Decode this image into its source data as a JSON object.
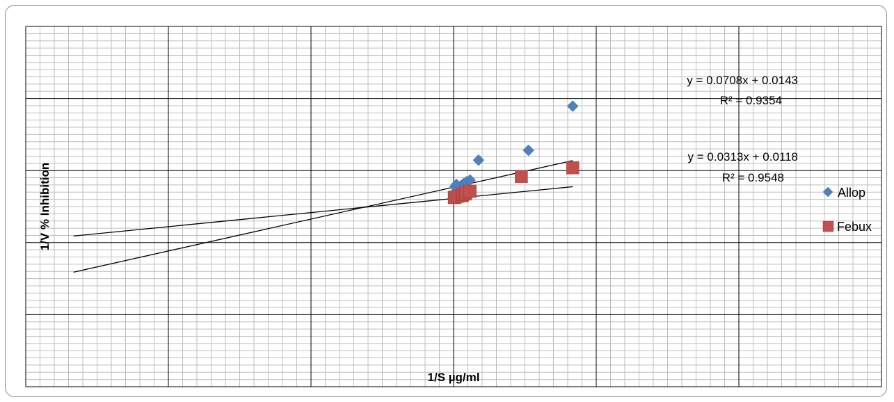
{
  "chart_data": {
    "type": "scatter",
    "xlabel": "1/S µg/ml",
    "ylabel": "1/V % Inhibition",
    "xlim": [
      -0.3,
      0.3
    ],
    "ylim": [
      -0.03,
      0.05
    ],
    "grid": true,
    "legend_position": "right",
    "series": [
      {
        "name": "Allop",
        "color": "#4F81BD",
        "marker": "diamond",
        "points": [
          [
            0.001,
            0.0144
          ],
          [
            0.002,
            0.0149
          ],
          [
            0.005,
            0.0146
          ],
          [
            0.007,
            0.0151
          ],
          [
            0.009,
            0.0155
          ],
          [
            0.0115,
            0.0159
          ],
          [
            0.0175,
            0.0203
          ],
          [
            0.0525,
            0.0225
          ],
          [
            0.0835,
            0.0323
          ]
        ],
        "trendline": {
          "slope": 0.0708,
          "intercept": 0.0143,
          "x_range": [
            -0.2665,
            0.0835
          ]
        },
        "equation": "y = 0.0708x + 0.0143",
        "r2": "R² = 0.9354"
      },
      {
        "name": "Febux",
        "color": "#C0504D",
        "marker": "square",
        "points": [
          [
            0.0005,
            0.012
          ],
          [
            0.001,
            0.0121
          ],
          [
            0.003,
            0.0123
          ],
          [
            0.006,
            0.0124
          ],
          [
            0.0065,
            0.0127
          ],
          [
            0.008,
            0.0128
          ],
          [
            0.0085,
            0.0131
          ],
          [
            0.0115,
            0.0134
          ],
          [
            0.0475,
            0.0167
          ],
          [
            0.0835,
            0.0186
          ]
        ],
        "trendline": {
          "slope": 0.0313,
          "intercept": 0.0118,
          "x_range": [
            -0.2665,
            0.0835
          ]
        },
        "equation": "y = 0.0313x + 0.0118",
        "r2": "R² = 0.9548"
      }
    ]
  }
}
